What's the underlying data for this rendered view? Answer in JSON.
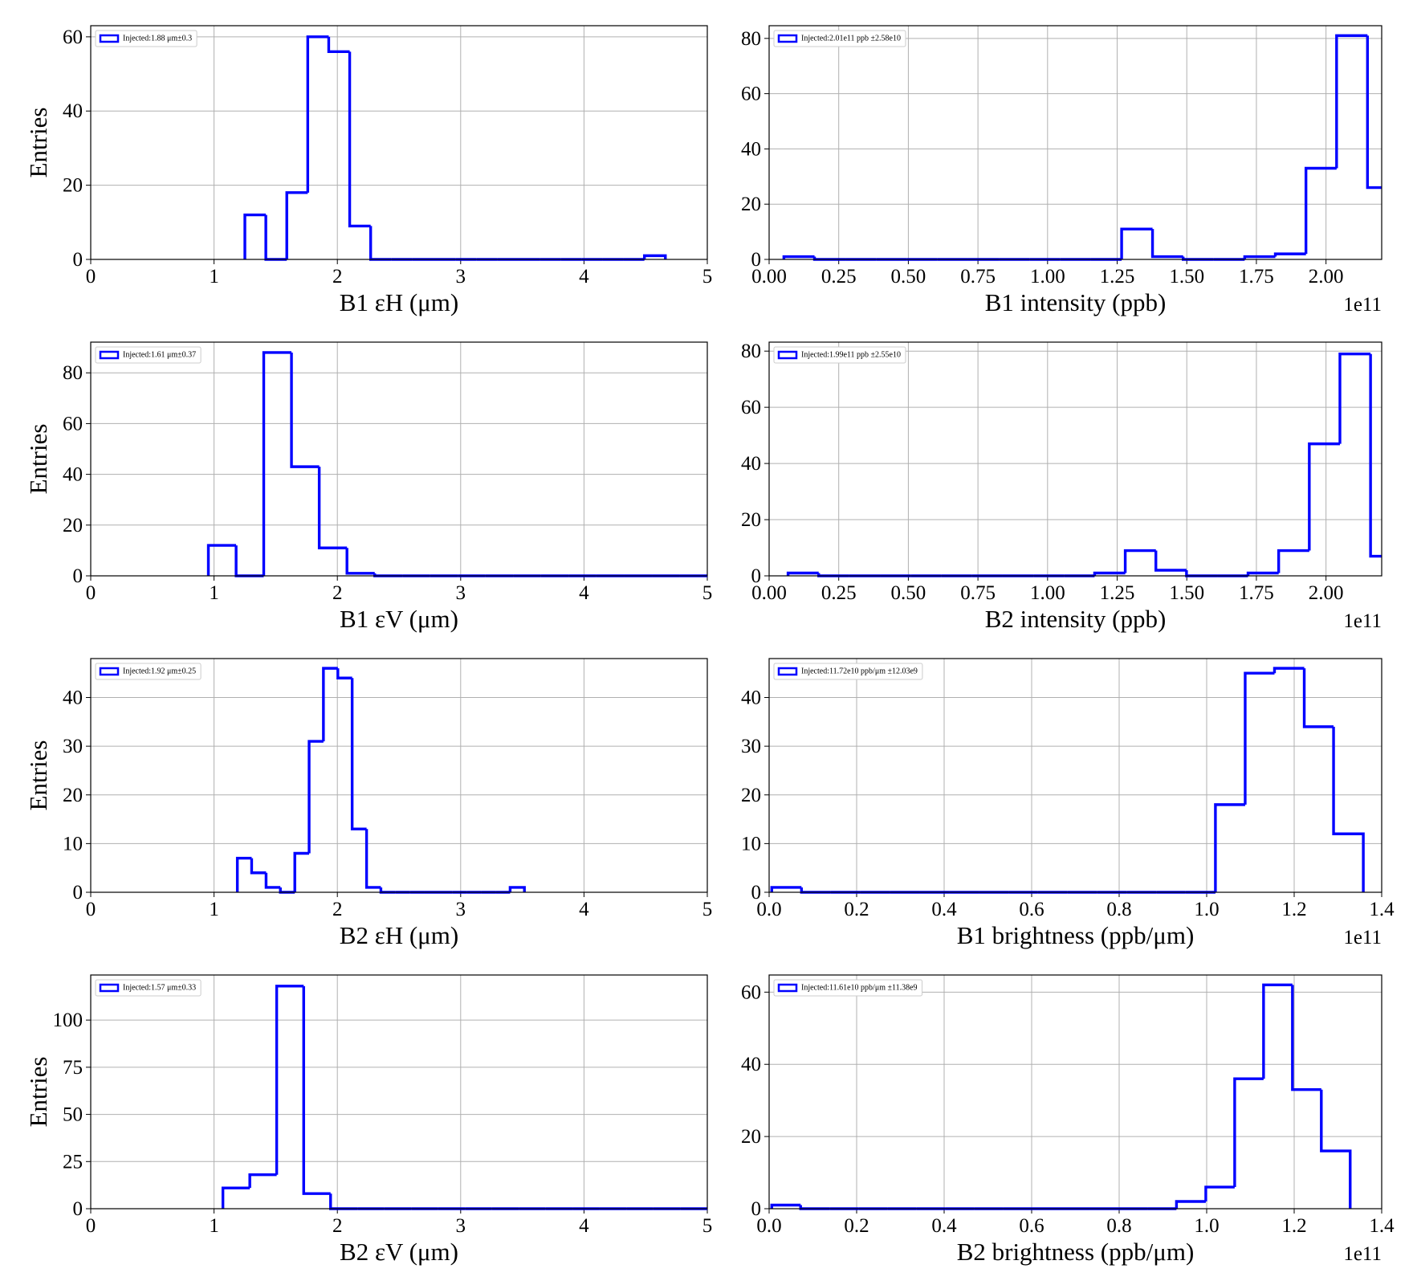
{
  "chart_data": [
    {
      "type": "histogram",
      "xlabel": "B1 εH (μm)",
      "ylabel": "Entries",
      "grid": true,
      "legend": "upper left",
      "xlim": [
        0,
        5
      ],
      "xticks": [
        0,
        1,
        2,
        3,
        4,
        5
      ],
      "ylim": [
        0,
        63
      ],
      "yticks": [
        0,
        20,
        40,
        60
      ],
      "bins": [
        1.25,
        1.42,
        1.59,
        1.76,
        1.93,
        2.1,
        2.27,
        2.44,
        2.61,
        2.78,
        2.96,
        3.13,
        3.3,
        3.47,
        3.64,
        3.81,
        3.98,
        4.15,
        4.32,
        4.49,
        4.66
      ],
      "series": [
        {
          "name": "Injected:1.88 μm±0.3",
          "color": "#0000ff",
          "values": [
            12,
            0,
            18,
            60,
            56,
            9,
            0,
            0,
            0,
            0,
            0,
            0,
            0,
            0,
            0,
            0,
            0,
            0,
            0,
            1
          ]
        }
      ]
    },
    {
      "type": "histogram",
      "xlabel": "B1 intensity (ppb)",
      "x_offset_label": "1e11",
      "grid": true,
      "legend": "upper left",
      "xlim": [
        0,
        2.2
      ],
      "xticks": [
        {
          "value": 0,
          "label": "0.00"
        },
        0.25,
        {
          "value": 0.5,
          "label": "0.50"
        },
        0.75,
        {
          "value": 1,
          "label": "1.00"
        },
        1.25,
        {
          "value": 1.5,
          "label": "1.50"
        },
        1.75,
        {
          "value": 2,
          "label": "2.00"
        }
      ],
      "ylim": [
        0,
        84.6
      ],
      "yticks": [
        0,
        20,
        40,
        60,
        80
      ],
      "bins": [
        0.053,
        0.163,
        0.274,
        0.384,
        0.494,
        0.605,
        0.715,
        0.825,
        0.935,
        1.046,
        1.156,
        1.266,
        1.377,
        1.487,
        1.597,
        1.708,
        1.818,
        1.928,
        2.038,
        2.149,
        2.259
      ],
      "series": [
        {
          "name": "Injected:2.01e11 ppb ±2.58e10",
          "color": "#0000ff",
          "values": [
            1,
            0,
            0,
            0,
            0,
            0,
            0,
            0,
            0,
            0,
            0,
            11,
            1,
            0,
            0,
            1,
            2,
            33,
            81,
            26
          ]
        }
      ]
    },
    {
      "type": "histogram",
      "xlabel": "B1 εV (μm)",
      "ylabel": "Entries",
      "grid": true,
      "legend": "upper left",
      "xlim": [
        0,
        5
      ],
      "xticks": [
        0,
        1,
        2,
        3,
        4,
        5
      ],
      "ylim": [
        0,
        92.1
      ],
      "yticks": [
        0,
        20,
        40,
        60,
        80
      ],
      "bins": [
        0.954,
        1.179,
        1.403,
        1.628,
        1.853,
        2.078,
        2.303,
        2.527,
        2.752,
        2.977,
        3.202,
        3.427,
        3.651,
        3.876,
        4.101,
        4.326,
        4.551,
        4.775,
        5.0
      ],
      "series": [
        {
          "name": "Injected:1.61 μm±0.37",
          "color": "#0000ff",
          "values": [
            12,
            0,
            88,
            43,
            11,
            1,
            0,
            0,
            0,
            0,
            0,
            0,
            0,
            0,
            0,
            0,
            0,
            0
          ]
        }
      ]
    },
    {
      "type": "histogram",
      "xlabel": "B2 intensity (ppb)",
      "x_offset_label": "1e11",
      "grid": true,
      "legend": "upper left",
      "xlim": [
        0,
        2.2
      ],
      "xticks": [
        {
          "value": 0,
          "label": "0.00"
        },
        0.25,
        {
          "value": 0.5,
          "label": "0.50"
        },
        0.75,
        {
          "value": 1,
          "label": "1.00"
        },
        1.25,
        {
          "value": 1.5,
          "label": "1.50"
        },
        1.75,
        {
          "value": 2,
          "label": "2.00"
        }
      ],
      "ylim": [
        0,
        83.2
      ],
      "yticks": [
        0,
        20,
        40,
        60,
        80
      ],
      "bins": [
        0.068,
        0.178,
        0.288,
        0.398,
        0.508,
        0.619,
        0.729,
        0.839,
        0.949,
        1.059,
        1.169,
        1.279,
        1.389,
        1.499,
        1.609,
        1.72,
        1.83,
        1.94,
        2.05,
        2.16,
        2.27
      ],
      "series": [
        {
          "name": "Injected:1.99e11 ppb ±2.55e10",
          "color": "#0000ff",
          "values": [
            1,
            0,
            0,
            0,
            0,
            0,
            0,
            0,
            0,
            0,
            1,
            9,
            2,
            0,
            0,
            1,
            9,
            47,
            79,
            7
          ]
        }
      ]
    },
    {
      "type": "histogram",
      "xlabel": "B2 εH (μm)",
      "ylabel": "Entries",
      "grid": true,
      "legend": "upper left",
      "xlim": [
        0,
        5
      ],
      "xticks": [
        0,
        1,
        2,
        3,
        4,
        5
      ],
      "ylim": [
        0,
        48
      ],
      "yticks": [
        0,
        10,
        20,
        30,
        40
      ],
      "bins": [
        1.189,
        1.305,
        1.422,
        1.538,
        1.655,
        1.771,
        1.887,
        2.004,
        2.12,
        2.237,
        2.353,
        2.469,
        2.586,
        2.702,
        2.819,
        2.935,
        3.051,
        3.168,
        3.284,
        3.401,
        3.517
      ],
      "series": [
        {
          "name": "Injected:1.92 μm±0.25",
          "color": "#0000ff",
          "values": [
            7,
            4,
            1,
            0,
            8,
            31,
            46,
            44,
            13,
            1,
            0,
            0,
            0,
            0,
            0,
            0,
            0,
            0,
            0,
            1
          ]
        }
      ]
    },
    {
      "type": "histogram",
      "xlabel": "B1 brightness (ppb/μm)",
      "x_offset_label": "1e11",
      "grid": true,
      "legend": "upper left",
      "xlim": [
        0,
        1.4
      ],
      "xticks": [
        {
          "value": 0,
          "label": "0.0"
        },
        0.2,
        0.4,
        0.6,
        0.8,
        {
          "value": 1,
          "label": "1.0"
        },
        1.2,
        1.4
      ],
      "ylim": [
        0,
        48
      ],
      "yticks": [
        0,
        10,
        20,
        30,
        40
      ],
      "bins": [
        0.006,
        0.074,
        0.141,
        0.209,
        0.276,
        0.344,
        0.412,
        0.479,
        0.547,
        0.614,
        0.682,
        0.75,
        0.817,
        0.885,
        0.952,
        1.02,
        1.088,
        1.155,
        1.223,
        1.29,
        1.358
      ],
      "series": [
        {
          "name": "Injected:11.72e10 ppb/μm ±12.03e9",
          "color": "#0000ff",
          "values": [
            1,
            0,
            0,
            0,
            0,
            0,
            0,
            0,
            0,
            0,
            0,
            0,
            0,
            0,
            0,
            18,
            45,
            46,
            34,
            12
          ]
        }
      ]
    },
    {
      "type": "histogram",
      "xlabel": "B2 εV (μm)",
      "ylabel": "Entries",
      "grid": true,
      "legend": "upper left",
      "xlim": [
        0,
        5
      ],
      "xticks": [
        0,
        1,
        2,
        3,
        4,
        5
      ],
      "ylim": [
        0,
        123.9
      ],
      "yticks": [
        0,
        25,
        50,
        75,
        100
      ],
      "bins": [
        1.072,
        1.29,
        1.508,
        1.727,
        1.945,
        2.163,
        2.381,
        2.599,
        2.818,
        3.036,
        3.254,
        3.472,
        3.69,
        3.909,
        4.127,
        4.345,
        4.563,
        4.781,
        5.0
      ],
      "series": [
        {
          "name": "Injected:1.57 μm±0.33",
          "color": "#0000ff",
          "values": [
            11,
            18,
            118,
            8,
            0,
            0,
            0,
            0,
            0,
            0,
            0,
            0,
            0,
            0,
            0,
            0,
            0,
            0
          ]
        }
      ]
    },
    {
      "type": "histogram",
      "xlabel": "B2 brightness (ppb/μm)",
      "x_offset_label": "1e11",
      "grid": true,
      "legend": "upper left",
      "xlim": [
        0,
        1.4
      ],
      "xticks": [
        {
          "value": 0,
          "label": "0.0"
        },
        0.2,
        0.4,
        0.6,
        0.8,
        {
          "value": 1,
          "label": "1.0"
        },
        1.2,
        1.4
      ],
      "ylim": [
        0,
        64.75
      ],
      "yticks": [
        0,
        20,
        40,
        60
      ],
      "bins": [
        0.006,
        0.072,
        0.138,
        0.204,
        0.27,
        0.337,
        0.403,
        0.469,
        0.535,
        0.601,
        0.667,
        0.733,
        0.799,
        0.865,
        0.931,
        0.998,
        1.064,
        1.13,
        1.196,
        1.262,
        1.328
      ],
      "series": [
        {
          "name": "Injected:11.61e10 ppb/μm ±11.38e9",
          "color": "#0000ff",
          "values": [
            1,
            0,
            0,
            0,
            0,
            0,
            0,
            0,
            0,
            0,
            0,
            0,
            0,
            0,
            2,
            6,
            36,
            62,
            33,
            16
          ]
        }
      ]
    }
  ]
}
